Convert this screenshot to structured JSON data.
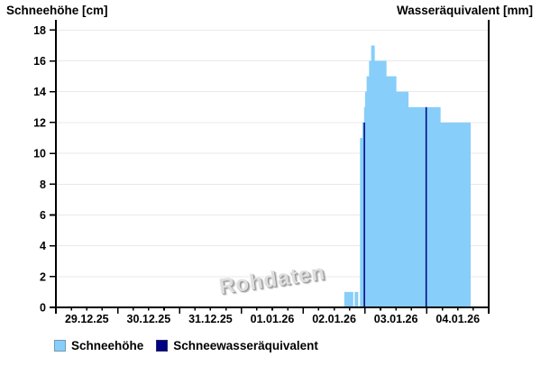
{
  "chart": {
    "title_left": "Schneehöhe [cm]",
    "title_right": "Wasseräquivalent [mm]",
    "watermark": "Rohdaten"
  },
  "legend": {
    "items": [
      {
        "label": "Schneehöhe",
        "color": "#87CEFA"
      },
      {
        "label": "Schneewasseräquivalent",
        "color": "#000080"
      }
    ]
  },
  "chart_data": {
    "type": "area",
    "title": "Schneehöhe / Wasseräquivalent",
    "ylabel_left": "Schneehöhe [cm]",
    "ylabel_right": "Wasseräquivalent [mm]",
    "watermark": "Rohdaten",
    "ylim": [
      0,
      18
    ],
    "y_ticks": [
      0,
      2,
      4,
      6,
      8,
      10,
      12,
      14,
      16,
      18
    ],
    "grid": "horizontal",
    "legend_position": "bottom-left",
    "x_axis": {
      "unit": "days",
      "total_days": 7,
      "minor_ticks_per_day": 4,
      "day_labels": [
        "29.12.25",
        "30.12.25",
        "31.12.25",
        "01.01.26",
        "02.01.26",
        "03.01.26",
        "04.01.26"
      ]
    },
    "series": [
      {
        "name": "Schneehöhe",
        "unit": "cm",
        "color": "#87CEFA",
        "render": "step-area",
        "steps": [
          [
            0,
            0
          ],
          [
            4.664,
            1
          ],
          [
            4.81,
            0
          ],
          [
            4.832,
            1
          ],
          [
            4.89,
            0
          ],
          [
            4.919,
            11
          ],
          [
            4.956,
            12
          ],
          [
            4.985,
            13
          ],
          [
            5.0,
            14
          ],
          [
            5.026,
            15
          ],
          [
            5.065,
            16
          ],
          [
            5.099,
            17
          ],
          [
            5.157,
            16
          ],
          [
            5.347,
            15
          ],
          [
            5.507,
            14
          ],
          [
            5.703,
            13
          ],
          [
            6.222,
            12
          ]
        ],
        "end_t": 6.708,
        "peak_value": 17
      },
      {
        "name": "Schneewasseräquivalent",
        "unit": "mm",
        "color": "#000080",
        "render": "thin-bars",
        "bar_width_days": 0.022,
        "bars": [
          {
            "t": 5.0,
            "label": "03.01.26 00:00",
            "value": 12
          },
          {
            "t": 6.0,
            "label": "04.01.26 00:00",
            "value": 13
          }
        ]
      }
    ]
  }
}
